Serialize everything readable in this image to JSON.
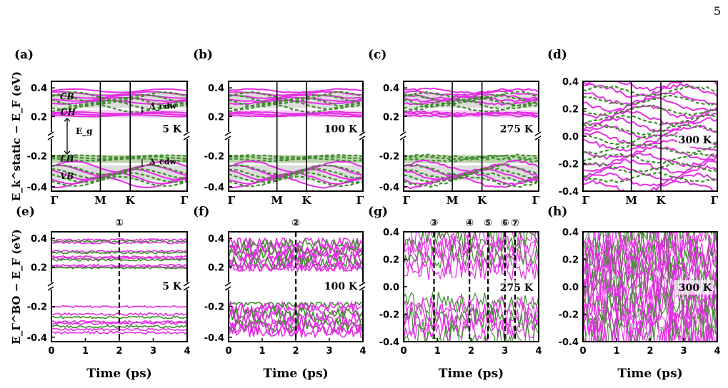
{
  "page_number": "5",
  "colors": {
    "magenta": "#E62EE6",
    "green": "#3E8E2C",
    "shade_gray": "#D9D9D9",
    "shade_green": "#B7CFA6",
    "shade_magenta": "#F3C6F3"
  },
  "chart_data": [
    {
      "panel": "(a)",
      "type": "line",
      "temperature": "5 K",
      "ylabel": "E_k^static − E_F (eV)",
      "ylim": [
        -0.4,
        0.4
      ],
      "broken_axis": true,
      "yticks": [
        "0.4",
        "0.2",
        "-0.2",
        "-0.4"
      ],
      "xticks": [
        "Γ",
        "M",
        "K",
        "Γ"
      ],
      "annotations": [
        "CB",
        "UH",
        "E_g",
        "LH",
        "VB",
        "Δ_cdw",
        "Δ_cdw"
      ],
      "series": [
        {
          "name": "",
          "style": "solid",
          "color": "magenta"
        },
        {
          "name": "",
          "style": "dashed",
          "color": "green"
        }
      ]
    },
    {
      "panel": "(b)",
      "type": "line",
      "temperature": "100 K",
      "ylim": [
        -0.4,
        0.4
      ],
      "broken_axis": true,
      "yticks": [
        "0.4",
        "0.2",
        "-0.2",
        "-0.4"
      ],
      "xticks": [
        "Γ",
        "M",
        "K",
        "Γ"
      ]
    },
    {
      "panel": "(c)",
      "type": "line",
      "temperature": "275 K",
      "ylim": [
        -0.4,
        0.4
      ],
      "broken_axis": true,
      "yticks": [
        "0.4",
        "0.2",
        "-0.2",
        "-0.4"
      ],
      "xticks": [
        "Γ",
        "M",
        "K",
        "Γ"
      ]
    },
    {
      "panel": "(d)",
      "type": "line",
      "temperature": "300 K",
      "ylim": [
        -0.4,
        0.4
      ],
      "broken_axis": false,
      "yticks": [
        "0.4",
        "0.2",
        "0.0",
        "-0.2",
        "-0.4"
      ],
      "xticks": [
        "Γ",
        "M",
        "K",
        "Γ"
      ]
    },
    {
      "panel": "(e)",
      "type": "line",
      "temperature": "5 K",
      "ylabel": "E_Γ^BO − E_F (eV)",
      "xlabel": "Time (ps)",
      "xlim": [
        0,
        4
      ],
      "ylim": [
        -0.4,
        0.4
      ],
      "broken_axis": true,
      "yticks": [
        "0.4",
        "0.2",
        "-0.2",
        "-0.4"
      ],
      "xticks": [
        "0",
        "1",
        "2",
        "3",
        "4"
      ],
      "markers": [
        {
          "label": "①",
          "time": 2.0
        }
      ]
    },
    {
      "panel": "(f)",
      "type": "line",
      "temperature": "100 K",
      "xlabel": "Time (ps)",
      "xlim": [
        0,
        4
      ],
      "ylim": [
        -0.4,
        0.4
      ],
      "broken_axis": true,
      "yticks": [
        "0.4",
        "0.2",
        "-0.2",
        "-0.4"
      ],
      "xticks": [
        "0",
        "1",
        "2",
        "3",
        "4"
      ],
      "markers": [
        {
          "label": "②",
          "time": 2.0
        }
      ]
    },
    {
      "panel": "(g)",
      "type": "line",
      "temperature": "275 K",
      "xlabel": "Time (ps)",
      "xlim": [
        0,
        4
      ],
      "ylim": [
        -0.4,
        0.4
      ],
      "broken_axis": false,
      "yticks": [
        "0.4",
        "0.2",
        "0.0",
        "-0.2",
        "-0.4"
      ],
      "xticks": [
        "0",
        "1",
        "2",
        "3",
        "4"
      ],
      "markers": [
        {
          "label": "③",
          "time": 0.9
        },
        {
          "label": "④",
          "time": 1.95
        },
        {
          "label": "⑤",
          "time": 2.5
        },
        {
          "label": "⑥",
          "time": 3.0
        },
        {
          "label": "⑦",
          "time": 3.3
        }
      ]
    },
    {
      "panel": "(h)",
      "type": "line",
      "temperature": "300 K",
      "xlabel": "Time (ps)",
      "xlim": [
        0,
        4
      ],
      "ylim": [
        -0.4,
        0.4
      ],
      "broken_axis": false,
      "yticks": [
        "0.4",
        "0.2",
        "0.0",
        "-0.2",
        "-0.4"
      ],
      "xticks": [
        "0",
        "1",
        "2",
        "3",
        "4"
      ]
    }
  ]
}
